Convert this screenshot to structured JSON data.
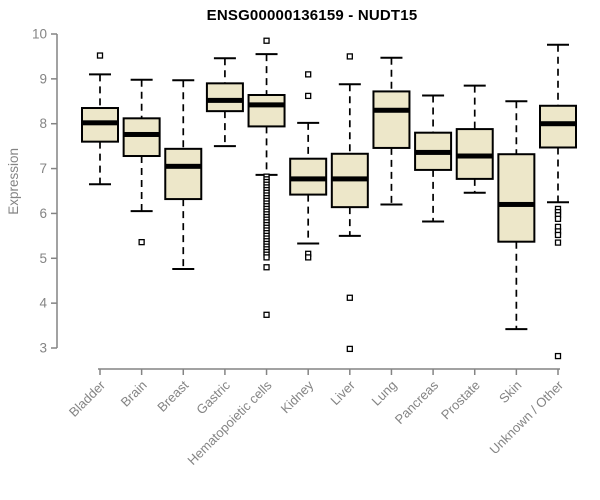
{
  "figure": {
    "title": "ENSG00000136159 - NUDT15",
    "ylabel": "Expression"
  },
  "chart_data": {
    "type": "boxplot",
    "title": "ENSG00000136159 - NUDT15",
    "xlabel": "",
    "ylabel": "Expression",
    "ylim": [
      3,
      10
    ],
    "yticks": [
      3,
      4,
      5,
      6,
      7,
      8,
      9,
      10
    ],
    "grid": false,
    "legend": "none",
    "box_fill_color": "#EDE7C9",
    "median_color": "#000000",
    "axis_color": "#848484",
    "categories": [
      "Bladder",
      "Brain",
      "Breast",
      "Gastric",
      "Hematopoietic cells",
      "Kidney",
      "Liver",
      "Lung",
      "Pancreas",
      "Prostate",
      "Skin",
      "Unknown / Other"
    ],
    "series": [
      {
        "name": "Bladder",
        "whisker_low": 6.65,
        "q1": 7.6,
        "median": 8.02,
        "q3": 8.35,
        "whisker_high": 9.1,
        "outliers": [
          9.52
        ]
      },
      {
        "name": "Brain",
        "whisker_low": 6.05,
        "q1": 7.28,
        "median": 7.76,
        "q3": 8.12,
        "whisker_high": 8.98,
        "outliers": [
          5.36
        ]
      },
      {
        "name": "Breast",
        "whisker_low": 4.76,
        "q1": 6.32,
        "median": 7.05,
        "q3": 7.44,
        "whisker_high": 8.97,
        "outliers": []
      },
      {
        "name": "Gastric",
        "whisker_low": 7.5,
        "q1": 8.28,
        "median": 8.52,
        "q3": 8.9,
        "whisker_high": 9.46,
        "outliers": []
      },
      {
        "name": "Hematopoietic cells",
        "whisker_low": 6.86,
        "q1": 7.94,
        "median": 8.42,
        "q3": 8.64,
        "whisker_high": 9.55,
        "outliers": [
          9.85,
          6.82,
          6.76,
          6.7,
          6.64,
          6.58,
          6.52,
          6.46,
          6.4,
          6.34,
          6.28,
          6.22,
          6.16,
          6.1,
          6.04,
          5.98,
          5.92,
          5.86,
          5.8,
          5.74,
          5.68,
          5.62,
          5.56,
          5.5,
          5.44,
          5.38,
          5.32,
          5.26,
          5.2,
          5.14,
          5.08,
          5.02,
          4.8,
          3.74
        ]
      },
      {
        "name": "Kidney",
        "whisker_low": 5.33,
        "q1": 6.42,
        "median": 6.77,
        "q3": 7.22,
        "whisker_high": 8.02,
        "outliers": [
          9.1,
          8.62,
          5.1,
          5.02
        ]
      },
      {
        "name": "Liver",
        "whisker_low": 5.5,
        "q1": 6.14,
        "median": 6.77,
        "q3": 7.33,
        "whisker_high": 8.88,
        "outliers": [
          9.5,
          4.12,
          2.98
        ]
      },
      {
        "name": "Lung",
        "whisker_low": 6.2,
        "q1": 7.46,
        "median": 8.3,
        "q3": 8.72,
        "whisker_high": 9.47,
        "outliers": []
      },
      {
        "name": "Pancreas",
        "whisker_low": 5.82,
        "q1": 6.97,
        "median": 7.36,
        "q3": 7.8,
        "whisker_high": 8.63,
        "outliers": []
      },
      {
        "name": "Prostate",
        "whisker_low": 6.46,
        "q1": 6.77,
        "median": 7.28,
        "q3": 7.88,
        "whisker_high": 8.85,
        "outliers": []
      },
      {
        "name": "Skin",
        "whisker_low": 3.42,
        "q1": 5.37,
        "median": 6.2,
        "q3": 7.32,
        "whisker_high": 8.5,
        "outliers": []
      },
      {
        "name": "Unknown / Other",
        "whisker_low": 6.25,
        "q1": 7.47,
        "median": 8.0,
        "q3": 8.4,
        "whisker_high": 9.76,
        "outliers": [
          6.1,
          6.03,
          5.96,
          5.88,
          5.7,
          5.6,
          5.52,
          5.35,
          2.82
        ]
      }
    ]
  }
}
